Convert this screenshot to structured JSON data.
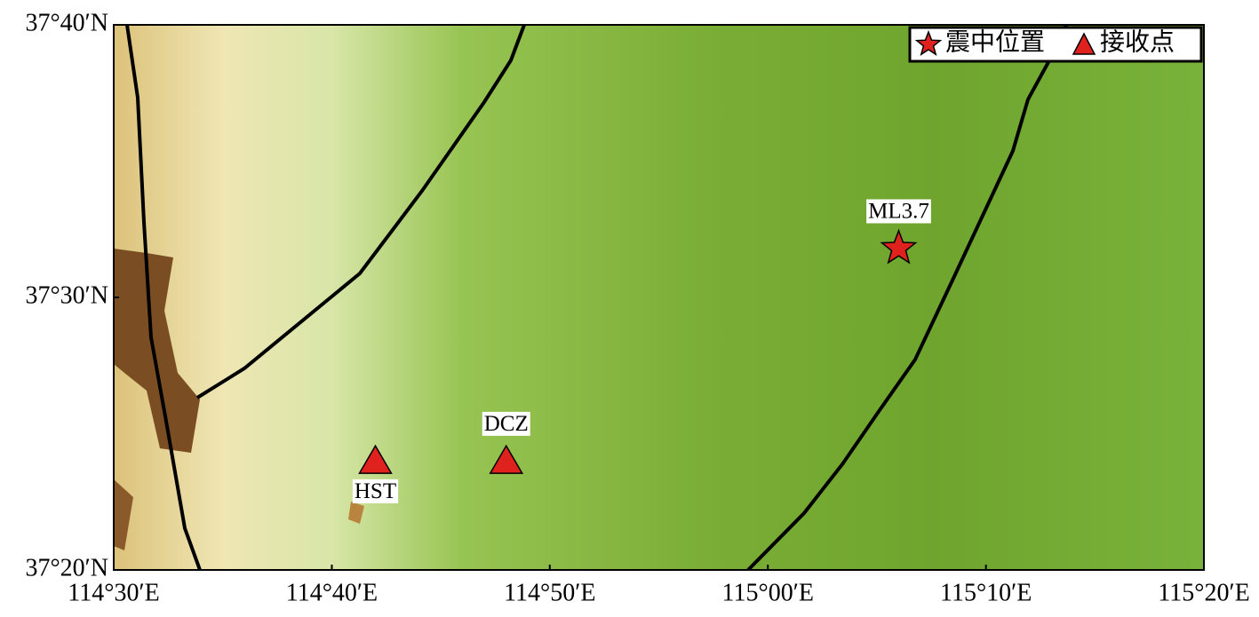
{
  "map": {
    "xlim": [
      114.5,
      115.3333
    ],
    "ylim": [
      37.3333,
      37.6667
    ],
    "xticks": [
      {
        "value": 114.5,
        "label": "114°30′E"
      },
      {
        "value": 114.6667,
        "label": "114°40′E"
      },
      {
        "value": 114.8333,
        "label": "114°50′E"
      },
      {
        "value": 115.0,
        "label": "115°00′E"
      },
      {
        "value": 115.1667,
        "label": "115°10′E"
      },
      {
        "value": 115.3333,
        "label": "115°20′E"
      }
    ],
    "yticks": [
      {
        "value": 37.3333,
        "label": "37°20′N"
      },
      {
        "value": 37.5,
        "label": "37°30′N"
      },
      {
        "value": 37.6667,
        "label": "37°40′N"
      }
    ],
    "legend": [
      "震中位置",
      "接收点"
    ],
    "points": [
      {
        "label": "ML3.7",
        "lon": 115.1,
        "lat": 37.53,
        "color": "#e0221e"
      },
      {
        "label": "HST",
        "lon": 114.7,
        "lat": 37.4,
        "color": "#e0221e"
      },
      {
        "label": "DCZ",
        "lon": 114.8,
        "lat": 37.4,
        "color": "#e0221e"
      }
    ]
  }
}
